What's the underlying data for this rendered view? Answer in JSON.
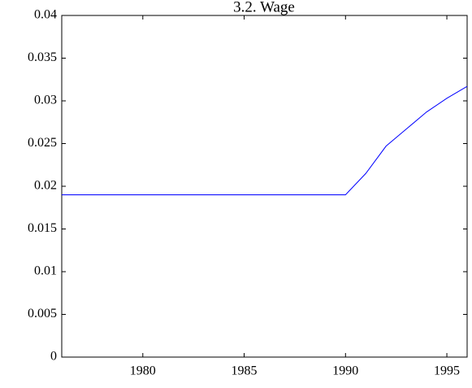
{
  "chart_data": {
    "type": "line",
    "title": "3.2. Wage",
    "x": [
      1976,
      1977,
      1978,
      1979,
      1980,
      1981,
      1982,
      1983,
      1984,
      1985,
      1986,
      1987,
      1988,
      1989,
      1990,
      1991,
      1992,
      1993,
      1994,
      1995,
      1996
    ],
    "values": [
      0.019,
      0.019,
      0.019,
      0.019,
      0.019,
      0.019,
      0.019,
      0.019,
      0.019,
      0.019,
      0.019,
      0.019,
      0.019,
      0.019,
      0.019,
      0.0215,
      0.0247,
      0.0267,
      0.0287,
      0.0303,
      0.0317
    ],
    "color": "#0000ff",
    "xlim": [
      1976,
      1996
    ],
    "xticks": [
      1980,
      1985,
      1990,
      1995
    ],
    "ylim": [
      0,
      0.04
    ],
    "yticks": [
      0,
      0.005,
      0.01,
      0.015,
      0.02,
      0.025,
      0.03,
      0.035,
      0.04
    ],
    "grid": false
  }
}
